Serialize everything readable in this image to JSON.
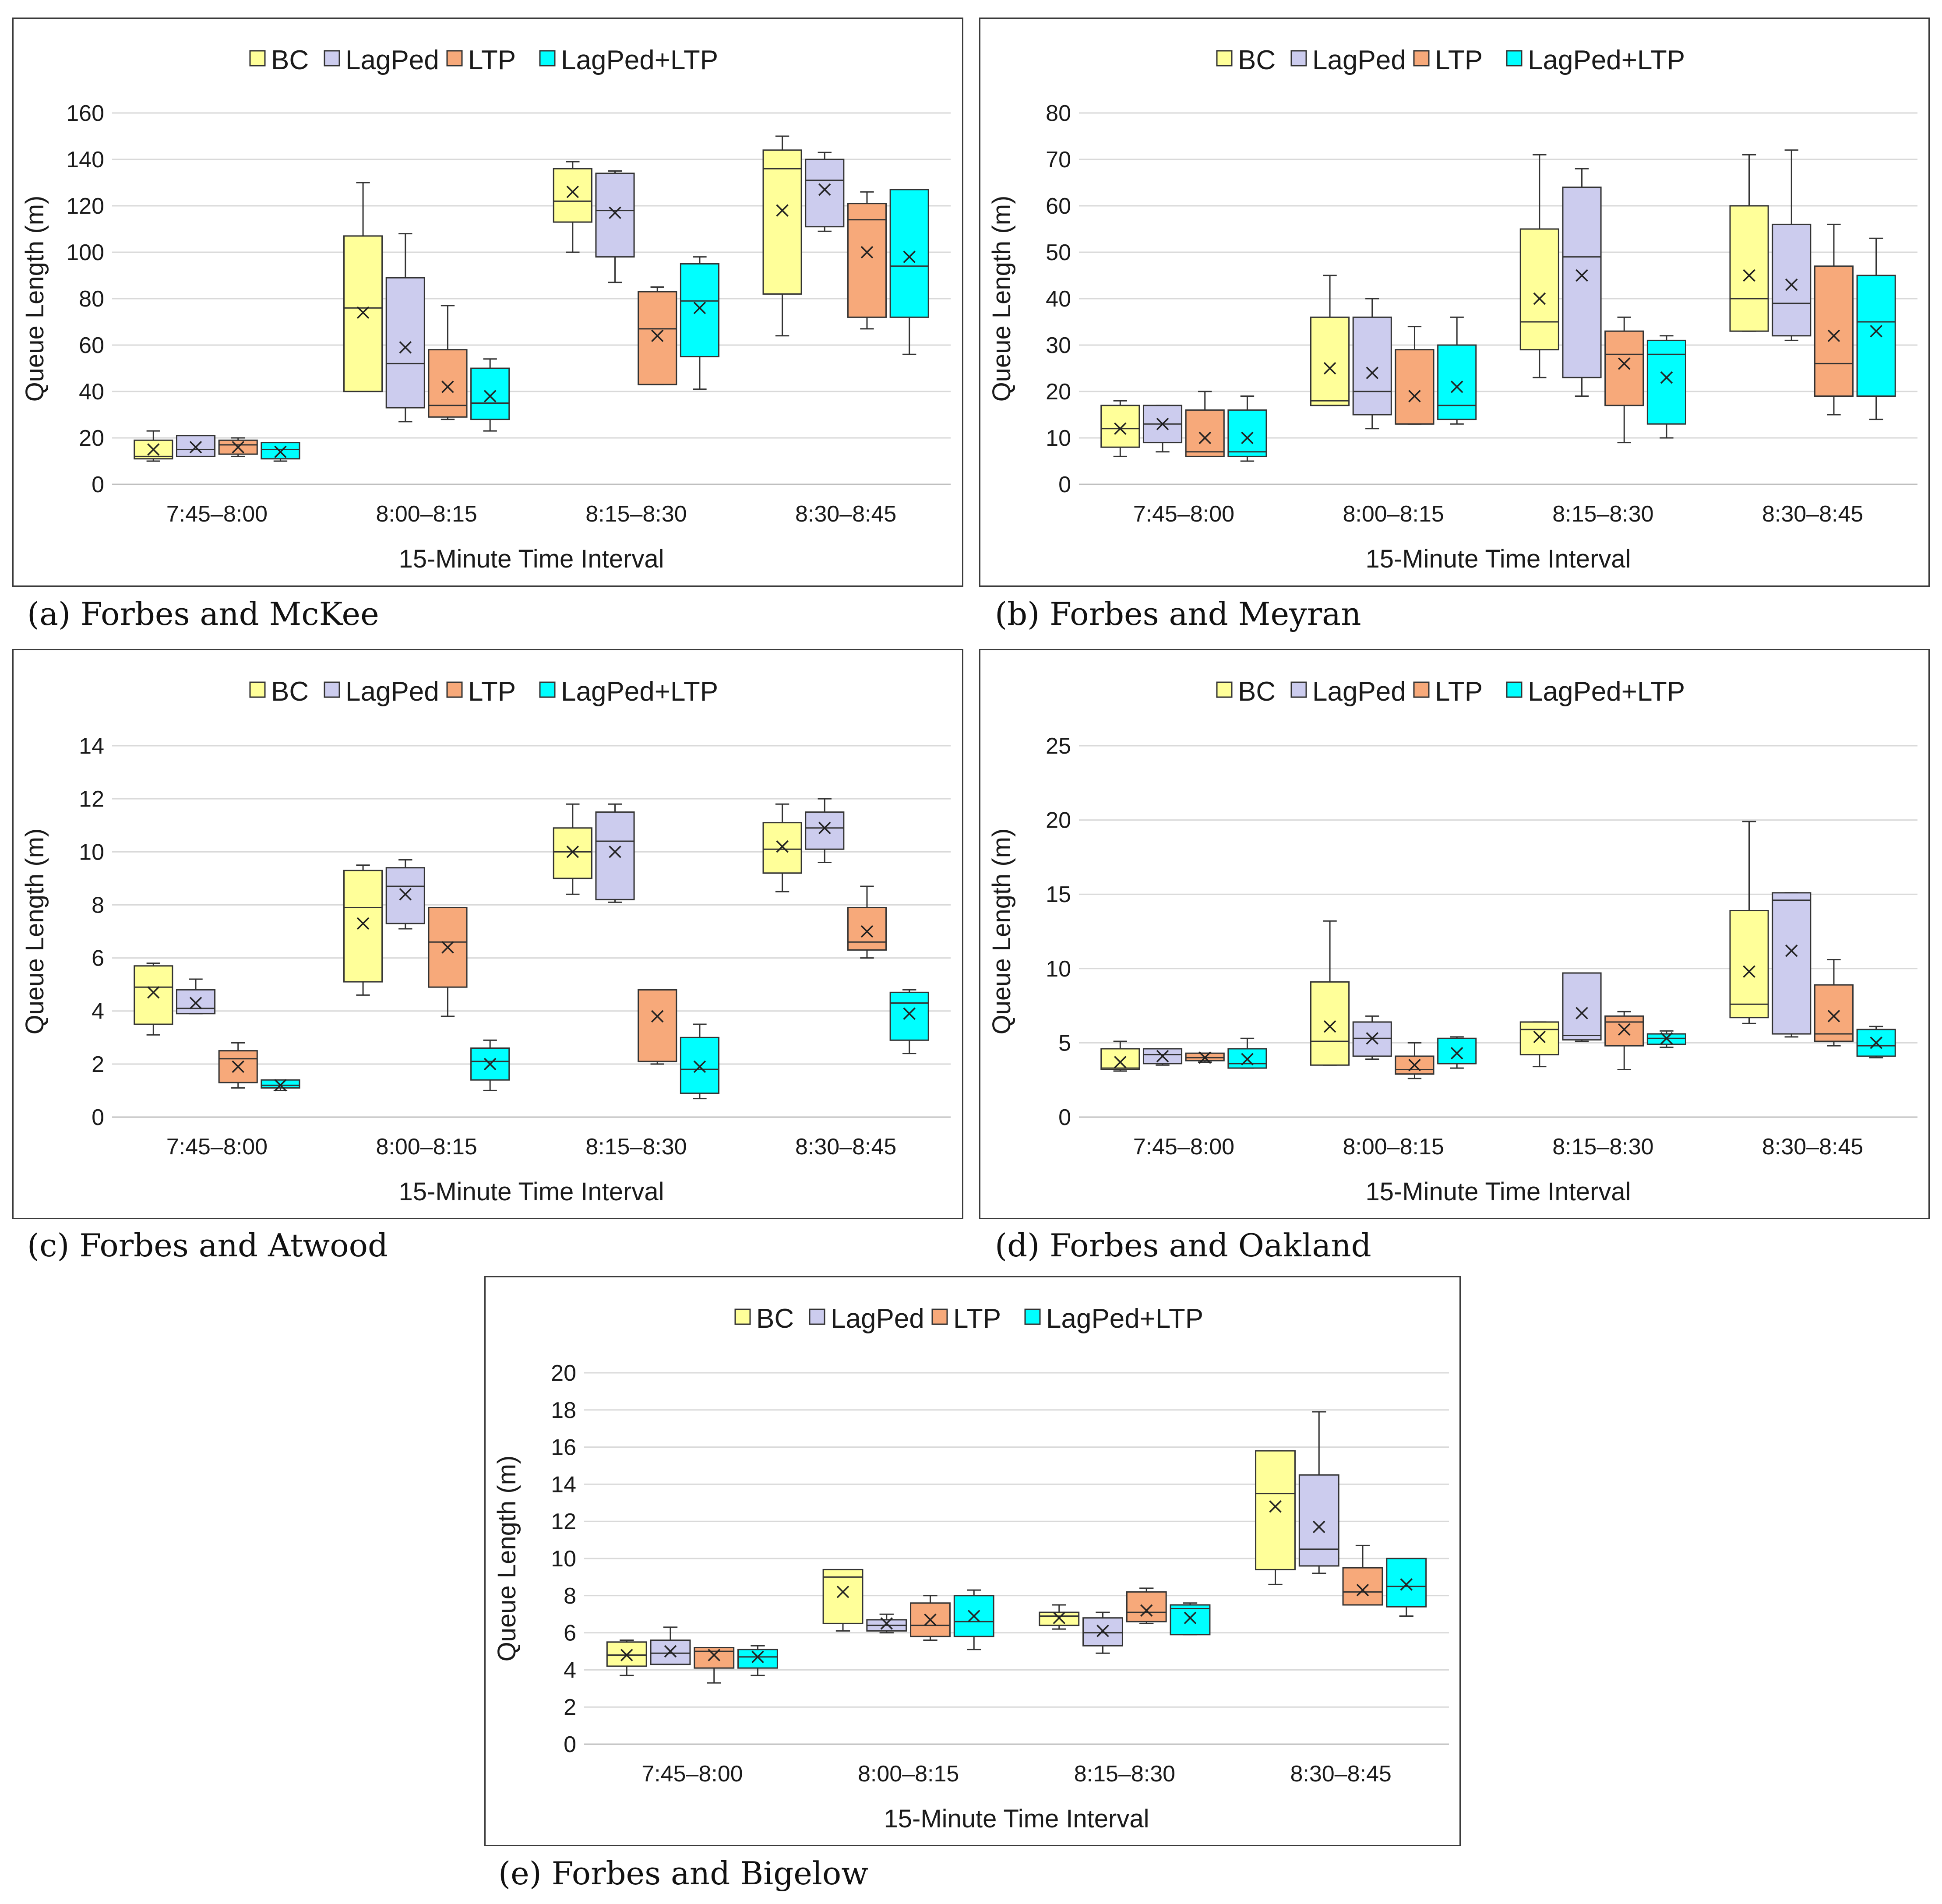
{
  "legend": [
    {
      "name": "BC",
      "color": "#ffff99"
    },
    {
      "name": "LagPed",
      "color": "#ccccee"
    },
    {
      "name": "LTP",
      "color": "#f7a97a"
    },
    {
      "name": "LagPed+LTP",
      "color": "#00ffff"
    }
  ],
  "chart_data": [
    {
      "type": "box",
      "caption": "(a) Forbes and McKee",
      "xlabel": "15-Minute Time Interval",
      "ylabel": "Queue Length (m)",
      "ylim": [
        0,
        160
      ],
      "ytick_step": 20,
      "yticks": [
        "0",
        "20",
        "40",
        "60",
        "80",
        "100",
        "120",
        "140",
        "160"
      ],
      "categories": [
        "7:45–8:00",
        "8:00–8:15",
        "8:15–8:30",
        "8:30–8:45"
      ],
      "series": [
        {
          "name": "BC",
          "boxes": [
            {
              "min": 10,
              "q1": 11,
              "median": 12,
              "q3": 19,
              "max": 23,
              "mean": 15
            },
            {
              "min": 40,
              "q1": 40,
              "median": 76,
              "q3": 107,
              "max": 130,
              "mean": 74
            },
            {
              "min": 100,
              "q1": 113,
              "median": 122,
              "q3": 136,
              "max": 139,
              "mean": 126
            },
            {
              "min": 64,
              "q1": 82,
              "median": 136,
              "q3": 144,
              "max": 150,
              "mean": 118
            }
          ]
        },
        {
          "name": "LagPed",
          "boxes": [
            {
              "min": 12,
              "q1": 12,
              "median": 15,
              "q3": 21,
              "max": 21,
              "mean": 16
            },
            {
              "min": 27,
              "q1": 33,
              "median": 52,
              "q3": 89,
              "max": 108,
              "mean": 59
            },
            {
              "min": 87,
              "q1": 98,
              "median": 118,
              "q3": 134,
              "max": 135,
              "mean": 117
            },
            {
              "min": 109,
              "q1": 111,
              "median": 131,
              "q3": 140,
              "max": 143,
              "mean": 127
            }
          ]
        },
        {
          "name": "LTP",
          "boxes": [
            {
              "min": 12,
              "q1": 13,
              "median": 17,
              "q3": 19,
              "max": 20,
              "mean": 16
            },
            {
              "min": 28,
              "q1": 29,
              "median": 34,
              "q3": 58,
              "max": 77,
              "mean": 42
            },
            {
              "min": 43,
              "q1": 43,
              "median": 67,
              "q3": 83,
              "max": 85,
              "mean": 64
            },
            {
              "min": 67,
              "q1": 72,
              "median": 114,
              "q3": 121,
              "max": 126,
              "mean": 100
            }
          ]
        },
        {
          "name": "LagPed+LTP",
          "boxes": [
            {
              "min": 10,
              "q1": 11,
              "median": 15,
              "q3": 18,
              "max": 18,
              "mean": 14
            },
            {
              "min": 23,
              "q1": 28,
              "median": 35,
              "q3": 50,
              "max": 54,
              "mean": 38
            },
            {
              "min": 41,
              "q1": 55,
              "median": 79,
              "q3": 95,
              "max": 98,
              "mean": 76
            },
            {
              "min": 56,
              "q1": 72,
              "median": 94,
              "q3": 127,
              "max": 127,
              "mean": 98
            }
          ]
        }
      ]
    },
    {
      "type": "box",
      "caption": "(b) Forbes and Meyran",
      "xlabel": "15-Minute Time Interval",
      "ylabel": "Queue Length (m)",
      "ylim": [
        0,
        80
      ],
      "ytick_step": 10,
      "yticks": [
        "0",
        "10",
        "20",
        "30",
        "40",
        "50",
        "60",
        "70",
        "80"
      ],
      "categories": [
        "7:45–8:00",
        "8:00–8:15",
        "8:15–8:30",
        "8:30–8:45"
      ],
      "series": [
        {
          "name": "BC",
          "boxes": [
            {
              "min": 6,
              "q1": 8,
              "median": 12,
              "q3": 17,
              "max": 18,
              "mean": 12
            },
            {
              "min": 17,
              "q1": 17,
              "median": 18,
              "q3": 36,
              "max": 45,
              "mean": 25
            },
            {
              "min": 23,
              "q1": 29,
              "median": 35,
              "q3": 55,
              "max": 71,
              "mean": 40
            },
            {
              "min": 33,
              "q1": 33,
              "median": 40,
              "q3": 60,
              "max": 71,
              "mean": 45
            }
          ]
        },
        {
          "name": "LagPed",
          "boxes": [
            {
              "min": 7,
              "q1": 9,
              "median": 13,
              "q3": 17,
              "max": 17,
              "mean": 13
            },
            {
              "min": 12,
              "q1": 15,
              "median": 20,
              "q3": 36,
              "max": 40,
              "mean": 24
            },
            {
              "min": 19,
              "q1": 23,
              "median": 49,
              "q3": 64,
              "max": 68,
              "mean": 45
            },
            {
              "min": 31,
              "q1": 32,
              "median": 39,
              "q3": 56,
              "max": 72,
              "mean": 43
            }
          ]
        },
        {
          "name": "LTP",
          "boxes": [
            {
              "min": 6,
              "q1": 6,
              "median": 7,
              "q3": 16,
              "max": 20,
              "mean": 10
            },
            {
              "min": 13,
              "q1": 13,
              "median": 13,
              "q3": 29,
              "max": 34,
              "mean": 19
            },
            {
              "min": 9,
              "q1": 17,
              "median": 28,
              "q3": 33,
              "max": 36,
              "mean": 26
            },
            {
              "min": 15,
              "q1": 19,
              "median": 26,
              "q3": 47,
              "max": 56,
              "mean": 32
            }
          ]
        },
        {
          "name": "LagPed+LTP",
          "boxes": [
            {
              "min": 5,
              "q1": 6,
              "median": 7,
              "q3": 16,
              "max": 19,
              "mean": 10
            },
            {
              "min": 13,
              "q1": 14,
              "median": 17,
              "q3": 30,
              "max": 36,
              "mean": 21
            },
            {
              "min": 10,
              "q1": 13,
              "median": 28,
              "q3": 31,
              "max": 32,
              "mean": 23
            },
            {
              "min": 14,
              "q1": 19,
              "median": 35,
              "q3": 45,
              "max": 53,
              "mean": 33
            }
          ]
        }
      ]
    },
    {
      "type": "box",
      "caption": "(c) Forbes and Atwood",
      "xlabel": "15-Minute Time Interval",
      "ylabel": "Queue Length (m)",
      "ylim": [
        0,
        14
      ],
      "ytick_step": 2,
      "yticks": [
        "0",
        "2",
        "4",
        "6",
        "8",
        "10",
        "12",
        "14"
      ],
      "categories": [
        "7:45–8:00",
        "8:00–8:15",
        "8:15–8:30",
        "8:30–8:45"
      ],
      "series": [
        {
          "name": "BC",
          "boxes": [
            {
              "min": 3.1,
              "q1": 3.5,
              "median": 4.9,
              "q3": 5.7,
              "max": 5.8,
              "mean": 4.7
            },
            {
              "min": 4.6,
              "q1": 5.1,
              "median": 7.9,
              "q3": 9.3,
              "max": 9.5,
              "mean": 7.3
            },
            {
              "min": 8.4,
              "q1": 9.0,
              "median": 10.0,
              "q3": 10.9,
              "max": 11.8,
              "mean": 10.0
            },
            {
              "min": 8.5,
              "q1": 9.2,
              "median": 10.1,
              "q3": 11.1,
              "max": 11.8,
              "mean": 10.2
            }
          ]
        },
        {
          "name": "LagPed",
          "boxes": [
            {
              "min": 3.9,
              "q1": 3.9,
              "median": 4.1,
              "q3": 4.8,
              "max": 5.2,
              "mean": 4.3
            },
            {
              "min": 7.1,
              "q1": 7.3,
              "median": 8.7,
              "q3": 9.4,
              "max": 9.7,
              "mean": 8.4
            },
            {
              "min": 8.1,
              "q1": 8.2,
              "median": 10.4,
              "q3": 11.5,
              "max": 11.8,
              "mean": 10.0
            },
            {
              "min": 9.6,
              "q1": 10.1,
              "median": 10.9,
              "q3": 11.5,
              "max": 12.0,
              "mean": 10.9
            }
          ]
        },
        {
          "name": "LTP",
          "boxes": [
            {
              "min": 1.1,
              "q1": 1.3,
              "median": 2.2,
              "q3": 2.5,
              "max": 2.8,
              "mean": 1.9
            },
            {
              "min": 3.8,
              "q1": 4.9,
              "median": 6.6,
              "q3": 7.9,
              "max": 7.9,
              "mean": 6.4
            },
            {
              "min": 2.0,
              "q1": 2.1,
              "median": 4.8,
              "q3": 4.8,
              "max": 4.8,
              "mean": 3.8
            },
            {
              "min": 6.0,
              "q1": 6.3,
              "median": 6.6,
              "q3": 7.9,
              "max": 8.7,
              "mean": 7.0
            }
          ]
        },
        {
          "name": "LagPed+LTP",
          "boxes": [
            {
              "min": 1.0,
              "q1": 1.1,
              "median": 1.2,
              "q3": 1.4,
              "max": 1.4,
              "mean": 1.2
            },
            {
              "min": 1.0,
              "q1": 1.4,
              "median": 2.1,
              "q3": 2.6,
              "max": 2.9,
              "mean": 2.0
            },
            {
              "min": 0.7,
              "q1": 0.9,
              "median": 1.8,
              "q3": 3.0,
              "max": 3.5,
              "mean": 1.9
            },
            {
              "min": 2.4,
              "q1": 2.9,
              "median": 4.3,
              "q3": 4.7,
              "max": 4.8,
              "mean": 3.9
            }
          ]
        }
      ]
    },
    {
      "type": "box",
      "caption": "(d) Forbes and Oakland",
      "xlabel": "15-Minute Time Interval",
      "ylabel": "Queue Length (m)",
      "ylim": [
        0,
        25
      ],
      "ytick_step": 5,
      "yticks": [
        "0",
        "5",
        "10",
        "15",
        "20",
        "25"
      ],
      "categories": [
        "7:45–8:00",
        "8:00–8:15",
        "8:15–8:30",
        "8:30–8:45"
      ],
      "series": [
        {
          "name": "BC",
          "boxes": [
            {
              "min": 3.1,
              "q1": 3.2,
              "median": 3.3,
              "q3": 4.6,
              "max": 5.1,
              "mean": 3.7
            },
            {
              "min": 3.5,
              "q1": 3.5,
              "median": 5.1,
              "q3": 9.1,
              "max": 13.2,
              "mean": 6.1
            },
            {
              "min": 3.4,
              "q1": 4.2,
              "median": 5.9,
              "q3": 6.4,
              "max": 6.4,
              "mean": 5.4
            },
            {
              "min": 6.3,
              "q1": 6.7,
              "median": 7.6,
              "q3": 13.9,
              "max": 19.9,
              "mean": 9.8
            }
          ]
        },
        {
          "name": "LagPed",
          "boxes": [
            {
              "min": 3.5,
              "q1": 3.6,
              "median": 4.2,
              "q3": 4.6,
              "max": 4.6,
              "mean": 4.1
            },
            {
              "min": 3.9,
              "q1": 4.1,
              "median": 5.3,
              "q3": 6.4,
              "max": 6.8,
              "mean": 5.3
            },
            {
              "min": 5.1,
              "q1": 5.2,
              "median": 5.5,
              "q3": 9.7,
              "max": 9.7,
              "mean": 7.0
            },
            {
              "min": 5.4,
              "q1": 5.6,
              "median": 14.6,
              "q3": 15.1,
              "max": 15.1,
              "mean": 11.2
            }
          ]
        },
        {
          "name": "LTP",
          "boxes": [
            {
              "min": 3.7,
              "q1": 3.8,
              "median": 4.0,
              "q3": 4.3,
              "max": 4.3,
              "mean": 4.0
            },
            {
              "min": 2.6,
              "q1": 2.9,
              "median": 3.2,
              "q3": 4.1,
              "max": 5.0,
              "mean": 3.5
            },
            {
              "min": 3.2,
              "q1": 4.8,
              "median": 6.4,
              "q3": 6.8,
              "max": 7.1,
              "mean": 5.9
            },
            {
              "min": 4.8,
              "q1": 5.1,
              "median": 5.6,
              "q3": 8.9,
              "max": 10.6,
              "mean": 6.8
            }
          ]
        },
        {
          "name": "LagPed+LTP",
          "boxes": [
            {
              "min": 3.3,
              "q1": 3.3,
              "median": 3.6,
              "q3": 4.6,
              "max": 5.3,
              "mean": 3.9
            },
            {
              "min": 3.3,
              "q1": 3.6,
              "median": 3.6,
              "q3": 5.3,
              "max": 5.4,
              "mean": 4.3
            },
            {
              "min": 4.7,
              "q1": 4.9,
              "median": 5.3,
              "q3": 5.6,
              "max": 5.8,
              "mean": 5.3
            },
            {
              "min": 4.0,
              "q1": 4.1,
              "median": 4.8,
              "q3": 5.9,
              "max": 6.1,
              "mean": 5.0
            }
          ]
        }
      ]
    },
    {
      "type": "box",
      "caption": "(e) Forbes and Bigelow",
      "xlabel": "15-Minute Time Interval",
      "ylabel": "Queue Length (m)",
      "ylim": [
        0,
        20
      ],
      "ytick_step": 2,
      "yticks": [
        "0",
        "2",
        "4",
        "6",
        "8",
        "10",
        "12",
        "14",
        "16",
        "18",
        "20"
      ],
      "categories": [
        "7:45–8:00",
        "8:00–8:15",
        "8:15–8:30",
        "8:30–8:45"
      ],
      "series": [
        {
          "name": "BC",
          "boxes": [
            {
              "min": 3.7,
              "q1": 4.2,
              "median": 4.8,
              "q3": 5.5,
              "max": 5.6,
              "mean": 4.8
            },
            {
              "min": 6.1,
              "q1": 6.5,
              "median": 9.0,
              "q3": 9.4,
              "max": 9.4,
              "mean": 8.2
            },
            {
              "min": 6.2,
              "q1": 6.4,
              "median": 6.9,
              "q3": 7.1,
              "max": 7.5,
              "mean": 6.8
            },
            {
              "min": 8.6,
              "q1": 9.4,
              "median": 13.5,
              "q3": 15.8,
              "max": 15.8,
              "mean": 12.8
            }
          ]
        },
        {
          "name": "LagPed",
          "boxes": [
            {
              "min": 4.3,
              "q1": 4.3,
              "median": 4.9,
              "q3": 5.6,
              "max": 6.3,
              "mean": 5.0
            },
            {
              "min": 6.0,
              "q1": 6.1,
              "median": 6.4,
              "q3": 6.7,
              "max": 7.0,
              "mean": 6.5
            },
            {
              "min": 4.9,
              "q1": 5.3,
              "median": 6.0,
              "q3": 6.8,
              "max": 7.1,
              "mean": 6.1
            },
            {
              "min": 9.2,
              "q1": 9.6,
              "median": 10.5,
              "q3": 14.5,
              "max": 17.9,
              "mean": 11.7
            }
          ]
        },
        {
          "name": "LTP",
          "boxes": [
            {
              "min": 3.3,
              "q1": 4.1,
              "median": 5.0,
              "q3": 5.2,
              "max": 5.2,
              "mean": 4.8
            },
            {
              "min": 5.6,
              "q1": 5.8,
              "median": 6.4,
              "q3": 7.6,
              "max": 8.0,
              "mean": 6.7
            },
            {
              "min": 6.5,
              "q1": 6.6,
              "median": 7.1,
              "q3": 8.2,
              "max": 8.4,
              "mean": 7.2
            },
            {
              "min": 7.5,
              "q1": 7.5,
              "median": 8.2,
              "q3": 9.5,
              "max": 10.7,
              "mean": 8.3
            }
          ]
        },
        {
          "name": "LagPed+LTP",
          "boxes": [
            {
              "min": 3.7,
              "q1": 4.1,
              "median": 4.7,
              "q3": 5.1,
              "max": 5.3,
              "mean": 4.7
            },
            {
              "min": 5.1,
              "q1": 5.8,
              "median": 6.6,
              "q3": 8.0,
              "max": 8.3,
              "mean": 6.9
            },
            {
              "min": 5.9,
              "q1": 5.9,
              "median": 7.3,
              "q3": 7.5,
              "max": 7.6,
              "mean": 6.8
            },
            {
              "min": 6.9,
              "q1": 7.4,
              "median": 8.5,
              "q3": 10.0,
              "max": 10.0,
              "mean": 8.6
            }
          ]
        }
      ]
    }
  ]
}
